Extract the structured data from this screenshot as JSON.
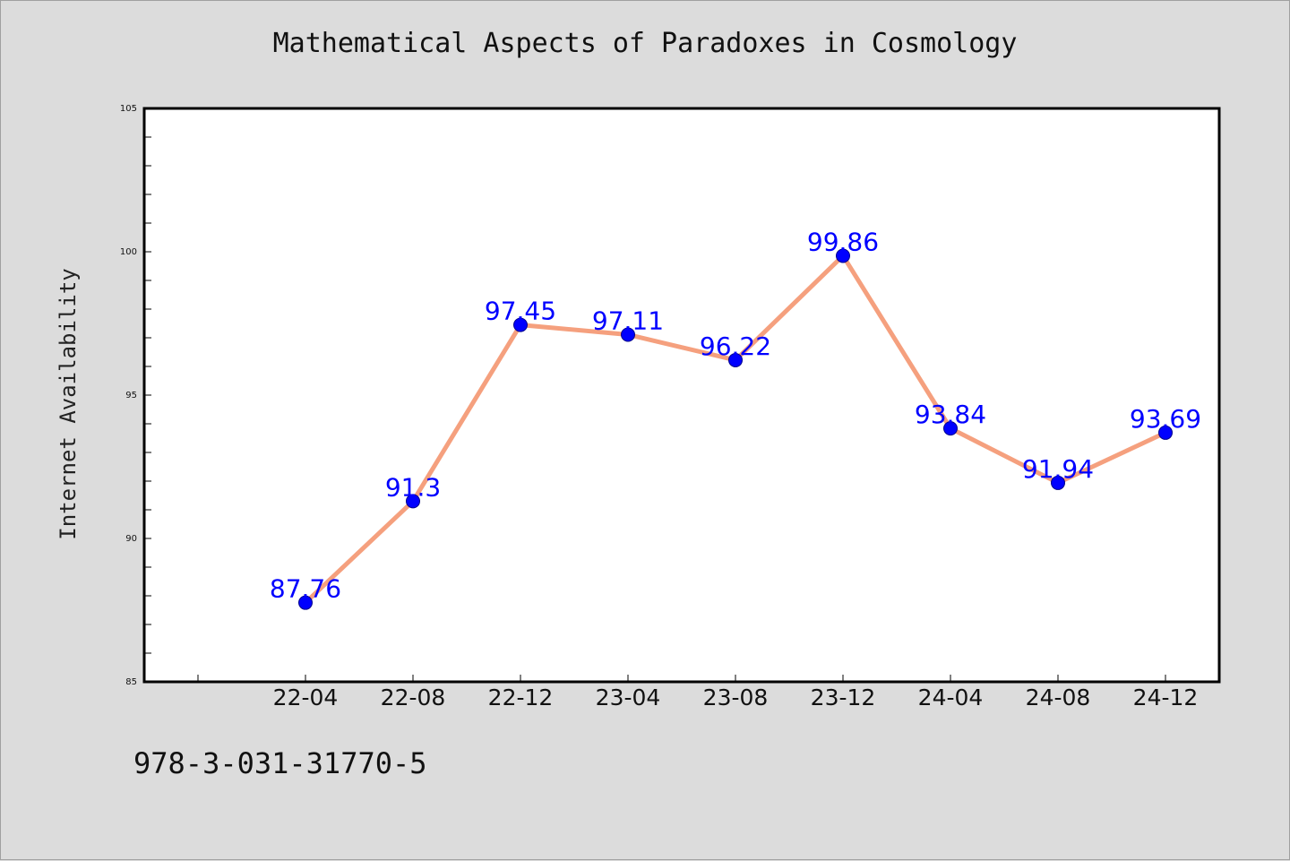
{
  "chart_data": {
    "type": "line",
    "title": "Mathematical Aspects of Paradoxes in Cosmology",
    "xlabel": "",
    "ylabel": "Internet Availability",
    "categories": [
      "22-04",
      "22-08",
      "22-12",
      "23-04",
      "23-08",
      "23-12",
      "24-04",
      "24-08",
      "24-12"
    ],
    "series": [
      {
        "values": [
          87.76,
          91.3,
          97.45,
          97.11,
          96.22,
          99.86,
          93.84,
          91.94,
          93.69
        ]
      }
    ],
    "data_labels": [
      "87.76",
      "91.3",
      "97.45",
      "97.11",
      "96.22",
      "99.86",
      "93.84",
      "91.94",
      "93.69"
    ],
    "ylim": [
      85,
      105
    ],
    "y_ticks": [
      "85",
      "90",
      "95",
      "100",
      "105"
    ],
    "grid": false,
    "legend": "none",
    "colors": {
      "line": "#f5a07e",
      "marker": "#0000ff",
      "label": "#0000ff",
      "background": "#dcdcdc",
      "plot_background": "#ffffff"
    }
  },
  "footnote": "978-3-031-31770-5"
}
